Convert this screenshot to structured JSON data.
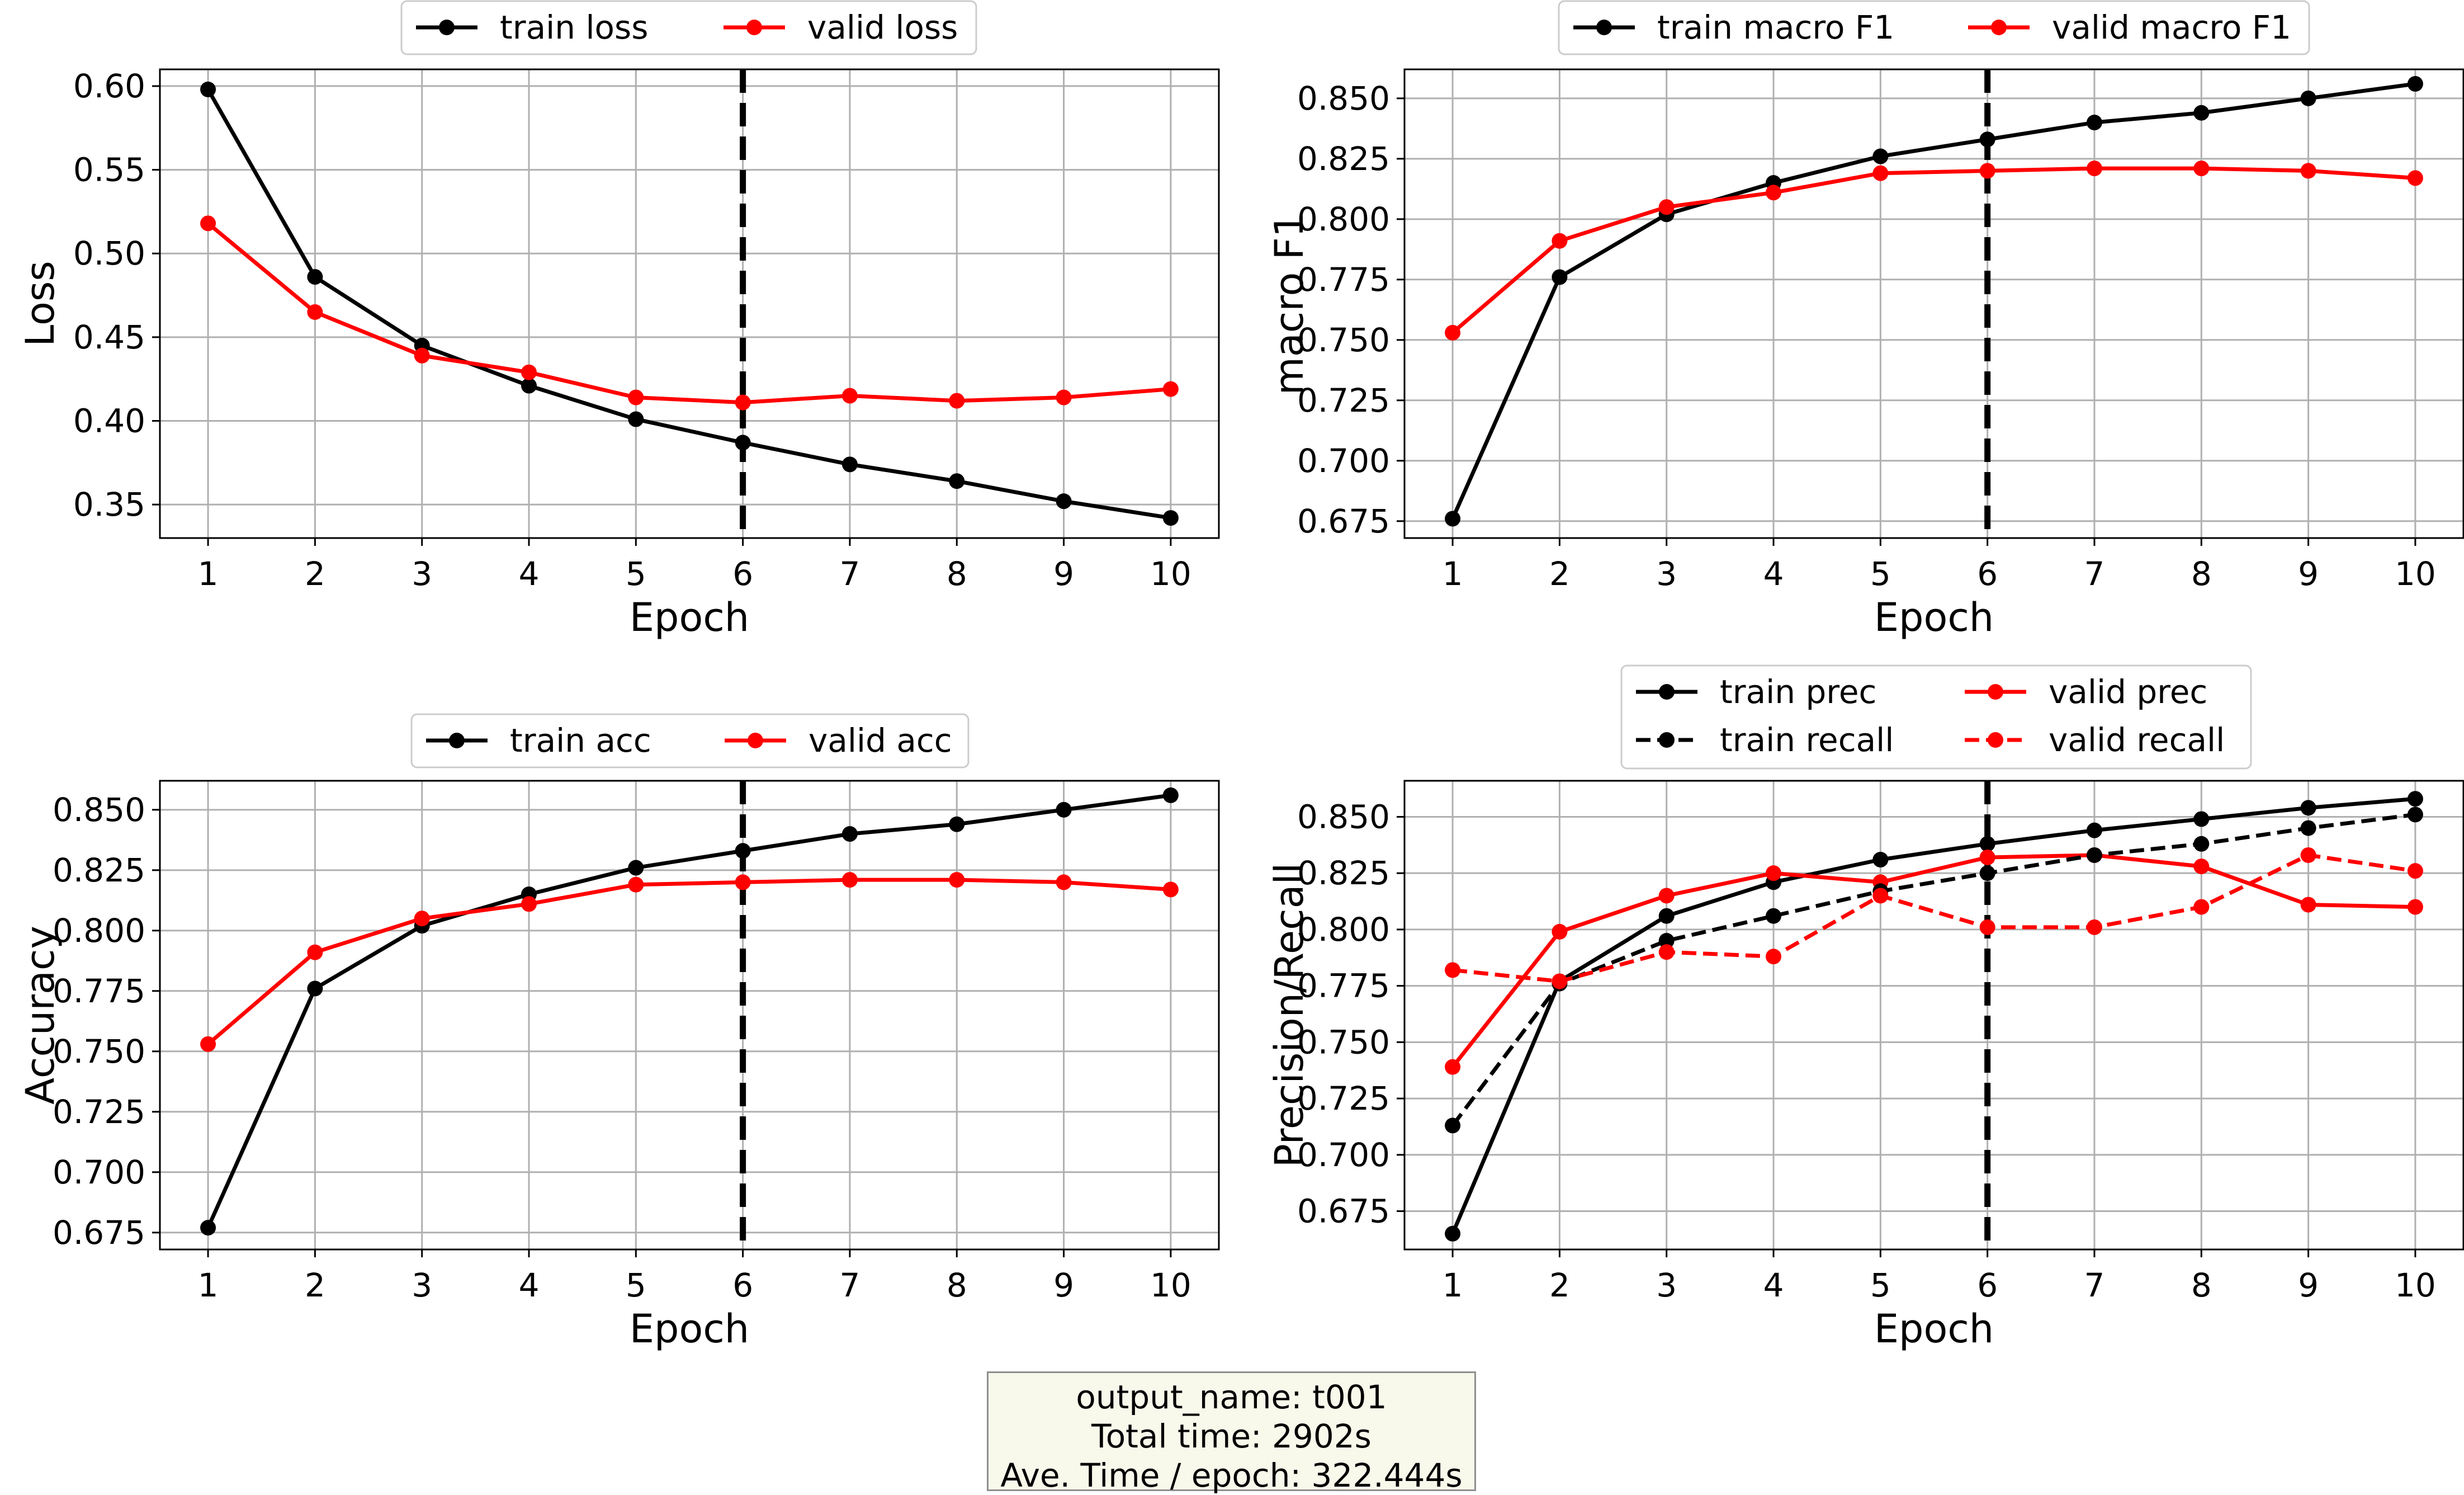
{
  "colors": {
    "train": "#000000",
    "valid": "#ff0000",
    "grid": "#b0b0b0"
  },
  "info_box": {
    "line1": "output_name: t001",
    "line2": "Total time: 2902s",
    "line3": "Ave. Time / epoch: 322.444s"
  },
  "chart_data": [
    {
      "type": "line",
      "xlabel": "Epoch",
      "ylabel": "Loss",
      "x": [
        1,
        2,
        3,
        4,
        5,
        6,
        7,
        8,
        9,
        10
      ],
      "ylim": [
        0.33,
        0.61
      ],
      "yticks": [
        "0.35",
        "0.40",
        "0.45",
        "0.50",
        "0.55",
        "0.60"
      ],
      "vline": 6,
      "grid": true,
      "legend_position": "top-center",
      "series": [
        {
          "name": "train loss",
          "color": "#000000",
          "dash": false,
          "values": [
            0.598,
            0.486,
            0.445,
            0.421,
            0.401,
            0.387,
            0.374,
            0.364,
            0.352,
            0.342
          ]
        },
        {
          "name": "valid loss",
          "color": "#ff0000",
          "dash": false,
          "values": [
            0.518,
            0.465,
            0.439,
            0.429,
            0.414,
            0.411,
            0.415,
            0.412,
            0.414,
            0.419
          ]
        }
      ]
    },
    {
      "type": "line",
      "xlabel": "Epoch",
      "ylabel": "macro F1",
      "x": [
        1,
        2,
        3,
        4,
        5,
        6,
        7,
        8,
        9,
        10
      ],
      "ylim": [
        0.668,
        0.862
      ],
      "yticks": [
        "0.675",
        "0.700",
        "0.725",
        "0.750",
        "0.775",
        "0.800",
        "0.825",
        "0.850"
      ],
      "vline": 6,
      "grid": true,
      "legend_position": "top-center",
      "series": [
        {
          "name": "train macro F1",
          "color": "#000000",
          "dash": false,
          "values": [
            0.676,
            0.776,
            0.802,
            0.815,
            0.826,
            0.833,
            0.84,
            0.844,
            0.85,
            0.856
          ]
        },
        {
          "name": "valid macro F1",
          "color": "#ff0000",
          "dash": false,
          "values": [
            0.753,
            0.791,
            0.805,
            0.811,
            0.819,
            0.82,
            0.821,
            0.821,
            0.82,
            0.817
          ]
        }
      ]
    },
    {
      "type": "line",
      "xlabel": "Epoch",
      "ylabel": "Accuracy",
      "x": [
        1,
        2,
        3,
        4,
        5,
        6,
        7,
        8,
        9,
        10
      ],
      "ylim": [
        0.668,
        0.862
      ],
      "yticks": [
        "0.675",
        "0.700",
        "0.725",
        "0.750",
        "0.775",
        "0.800",
        "0.825",
        "0.850"
      ],
      "vline": 6,
      "grid": true,
      "legend_position": "top-center",
      "series": [
        {
          "name": "train acc",
          "color": "#000000",
          "dash": false,
          "values": [
            0.677,
            0.776,
            0.802,
            0.815,
            0.826,
            0.833,
            0.84,
            0.844,
            0.85,
            0.856
          ]
        },
        {
          "name": "valid acc",
          "color": "#ff0000",
          "dash": false,
          "values": [
            0.753,
            0.791,
            0.805,
            0.811,
            0.819,
            0.82,
            0.821,
            0.821,
            0.82,
            0.817
          ]
        }
      ]
    },
    {
      "type": "line",
      "xlabel": "Epoch",
      "ylabel": "Precision/Recall",
      "x": [
        1,
        2,
        3,
        4,
        5,
        6,
        7,
        8,
        9,
        10
      ],
      "ylim": [
        0.658,
        0.866
      ],
      "yticks": [
        "0.675",
        "0.700",
        "0.725",
        "0.750",
        "0.775",
        "0.800",
        "0.825",
        "0.850"
      ],
      "vline": 6,
      "grid": true,
      "legend_position": "top-center",
      "series": [
        {
          "name": "train prec",
          "color": "#000000",
          "dash": false,
          "values": [
            0.665,
            0.777,
            0.806,
            0.821,
            0.831,
            0.838,
            0.844,
            0.849,
            0.854,
            0.858
          ]
        },
        {
          "name": "valid prec",
          "color": "#ff0000",
          "dash": false,
          "values": [
            0.739,
            0.799,
            0.815,
            0.825,
            0.821,
            0.832,
            0.833,
            0.828,
            0.811,
            0.81
          ]
        },
        {
          "name": "train recall",
          "color": "#000000",
          "dash": true,
          "values": [
            0.713,
            0.776,
            0.795,
            0.806,
            0.817,
            0.825,
            0.833,
            0.838,
            0.845,
            0.851
          ]
        },
        {
          "name": "valid recall",
          "color": "#ff0000",
          "dash": true,
          "values": [
            0.782,
            0.777,
            0.79,
            0.788,
            0.815,
            0.801,
            0.801,
            0.81,
            0.833,
            0.826
          ]
        }
      ]
    }
  ]
}
